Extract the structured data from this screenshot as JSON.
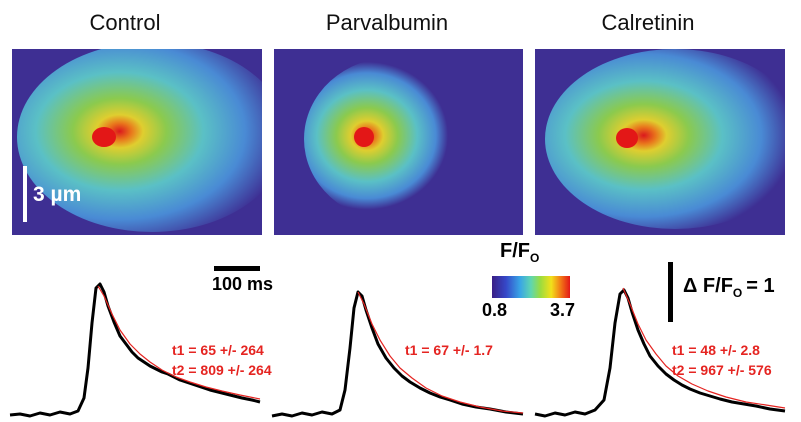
{
  "panels": [
    {
      "title": "Control"
    },
    {
      "title": "Parvalbumin"
    },
    {
      "title": "Calretinin"
    }
  ],
  "spatial_scale": {
    "label": "3 µm"
  },
  "time_scale": {
    "label": "100 ms"
  },
  "colorbar": {
    "title": "F/F",
    "title_sub": "O",
    "min": "0.8",
    "max": "3.7"
  },
  "amplitude_scale": {
    "prefix": "Δ F/F",
    "sub": "O",
    "suffix": "= 1"
  },
  "fits": [
    {
      "lines": [
        "t1 = 65 +/- 264",
        "t2 = 809 +/- 264"
      ]
    },
    {
      "lines": [
        "t1 = 67 +/- 1.7"
      ]
    },
    {
      "lines": [
        "t1 = 48 +/- 2.8",
        "t2 = 967 +/- 576"
      ]
    }
  ],
  "colors": {
    "trace": "#000000",
    "fit": "#e52421",
    "heat_background": "#3e2f93"
  }
}
